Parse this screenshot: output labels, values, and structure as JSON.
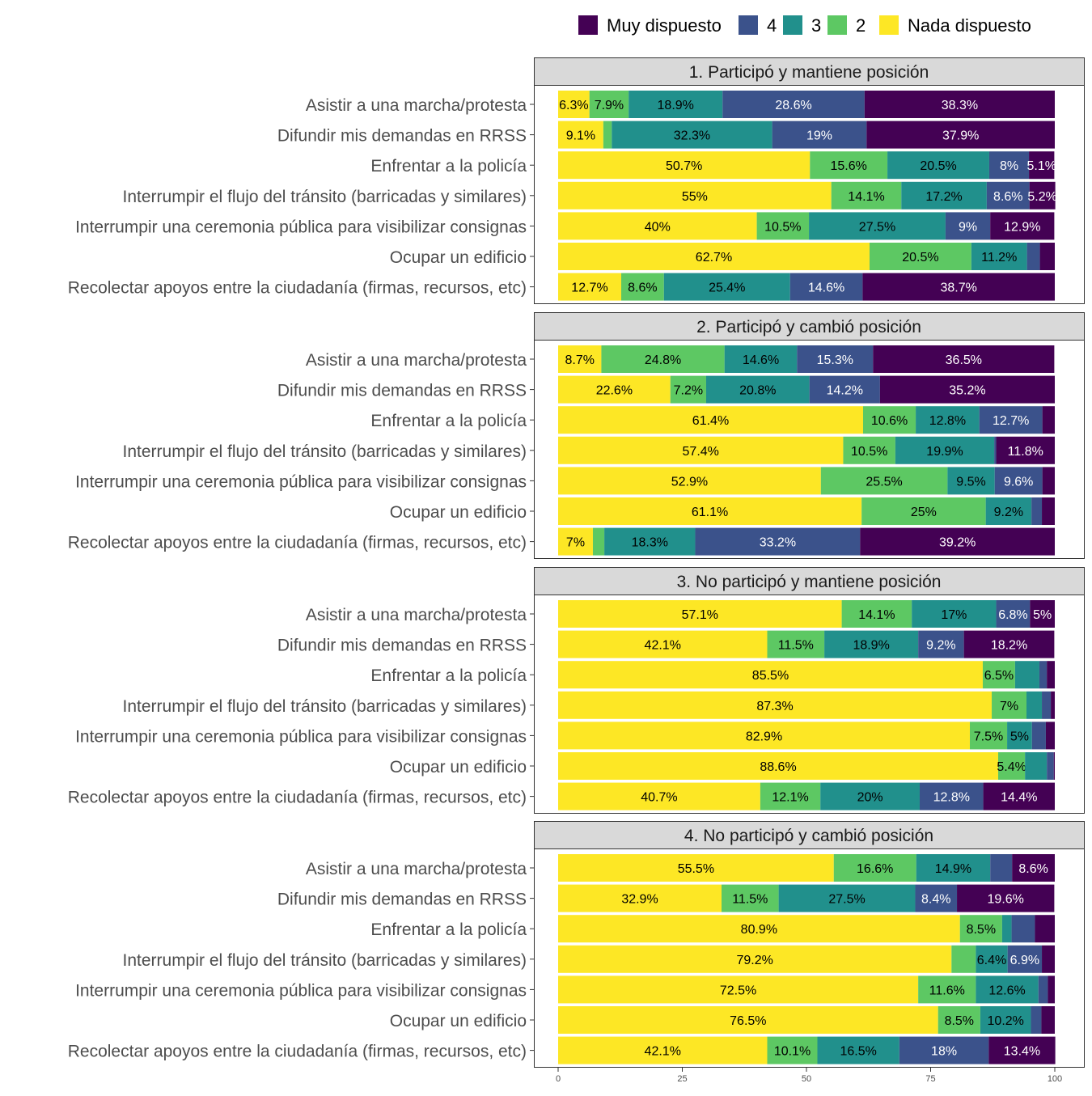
{
  "chart_data": {
    "type": "bar",
    "orientation": "horizontal-stacked",
    "legend": {
      "position": "top-right",
      "entries": [
        "Muy dispuesto",
        "4",
        "3",
        "2",
        "Nada dispuesto"
      ],
      "colors": [
        "#440154",
        "#3B528B",
        "#21908C",
        "#5DC863",
        "#FDE725"
      ]
    },
    "xlim": [
      0,
      100
    ],
    "xticks": [
      "0",
      "25",
      "50",
      "75",
      "100"
    ],
    "grid": false,
    "categories": [
      "Asistir a una marcha/protesta",
      "Difundir mis demandas en RRSS",
      "Enfrentar a la policía",
      "Interrumpir el flujo del tránsito (barricadas y similares)",
      "Interrumpir una ceremonia pública para visibilizar consignas",
      "Ocupar un edificio",
      "Recolectar apoyos entre la ciudadanía (firmas, recursos, etc)"
    ],
    "stack_order": [
      "Nada dispuesto",
      "2",
      "3",
      "4",
      "Muy dispuesto"
    ],
    "panels": [
      {
        "title": "1. Participó y mantiene posición",
        "values": [
          [
            6.3,
            7.9,
            18.9,
            28.6,
            38.3
          ],
          [
            9.1,
            1.7,
            32.3,
            19,
            37.9
          ],
          [
            50.7,
            15.6,
            20.5,
            8,
            5.1
          ],
          [
            55,
            14.1,
            17.2,
            8.6,
            5.2
          ],
          [
            40,
            10.5,
            27.5,
            9,
            12.9
          ],
          [
            62.7,
            20.5,
            11.2,
            2.6,
            3.0
          ],
          [
            12.7,
            8.6,
            25.4,
            14.6,
            38.7
          ]
        ]
      },
      {
        "title": "2. Participó y cambió posición",
        "values": [
          [
            8.7,
            24.8,
            14.6,
            15.3,
            36.5
          ],
          [
            22.6,
            7.2,
            20.8,
            14.2,
            35.2
          ],
          [
            61.4,
            10.6,
            12.8,
            12.7,
            2.5
          ],
          [
            57.4,
            10.5,
            19.9,
            0.4,
            11.8
          ],
          [
            52.9,
            25.5,
            9.5,
            9.6,
            2.5
          ],
          [
            61.1,
            25,
            9.2,
            2.1,
            2.6
          ],
          [
            7,
            2.3,
            18.3,
            33.2,
            39.2
          ]
        ]
      },
      {
        "title": "3. No participó y mantiene posición",
        "values": [
          [
            57.1,
            14.1,
            17,
            6.8,
            5.0
          ],
          [
            42.1,
            11.5,
            18.9,
            9.2,
            18.2
          ],
          [
            85.5,
            6.5,
            4.9,
            1.5,
            1.6
          ],
          [
            87.3,
            7,
            3.1,
            1.8,
            0.8
          ],
          [
            82.9,
            7.5,
            5,
            2.8,
            1.8
          ],
          [
            88.6,
            5.4,
            4.4,
            1.4,
            0.2
          ],
          [
            40.7,
            12.1,
            20,
            12.8,
            14.4
          ]
        ]
      },
      {
        "title": "4. No participó y cambió posición",
        "values": [
          [
            55.5,
            16.6,
            14.9,
            4.4,
            8.6
          ],
          [
            32.9,
            11.5,
            27.5,
            8.4,
            19.6
          ],
          [
            80.9,
            8.5,
            1.9,
            4.7,
            4.0
          ],
          [
            79.2,
            4.9,
            6.4,
            6.9,
            2.6
          ],
          [
            72.5,
            11.6,
            12.6,
            1.9,
            1.4
          ],
          [
            76.5,
            8.5,
            10.2,
            2.1,
            2.7
          ],
          [
            42.1,
            10.1,
            16.5,
            18,
            13.4
          ]
        ]
      }
    ],
    "label_threshold_percent": 5
  }
}
